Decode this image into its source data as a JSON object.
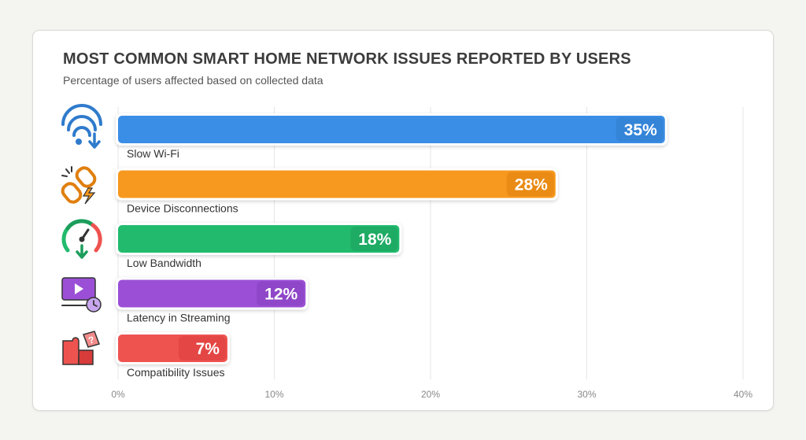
{
  "header": {
    "title": "MOST COMMON SMART HOME NETWORK ISSUES REPORTED BY USERS",
    "subtitle": "Percentage of users affected based on collected data"
  },
  "chart_data": {
    "type": "bar",
    "orientation": "horizontal",
    "title": "MOST COMMON SMART HOME NETWORK ISSUES REPORTED BY USERS",
    "subtitle": "Percentage of users affected based on collected data",
    "categories": [
      "Slow Wi-Fi",
      "Device Disconnections",
      "Low Bandwidth",
      "Latency in Streaming",
      "Compatibility Issues"
    ],
    "values": [
      35,
      28,
      18,
      12,
      7
    ],
    "value_labels": [
      "35%",
      "28%",
      "18%",
      "12%",
      "7%"
    ],
    "colors": [
      "#3b8ee6",
      "#f7991e",
      "#22bb6e",
      "#9b4fd6",
      "#ef5350"
    ],
    "label_colors": [
      "#2f7bcc",
      "#e07f0e",
      "#1b9e5c",
      "#8540bd",
      "#d83c3a"
    ],
    "icons": [
      "wifi-download-icon",
      "broken-link-icon",
      "speedometer-icon",
      "video-latency-icon",
      "puzzle-question-icon"
    ],
    "xlim": [
      0,
      40
    ],
    "xticks": [
      "0%",
      "10%",
      "20%",
      "30%",
      "40%"
    ],
    "xlabel": "",
    "ylabel": "",
    "grid": true,
    "legend": "none"
  }
}
